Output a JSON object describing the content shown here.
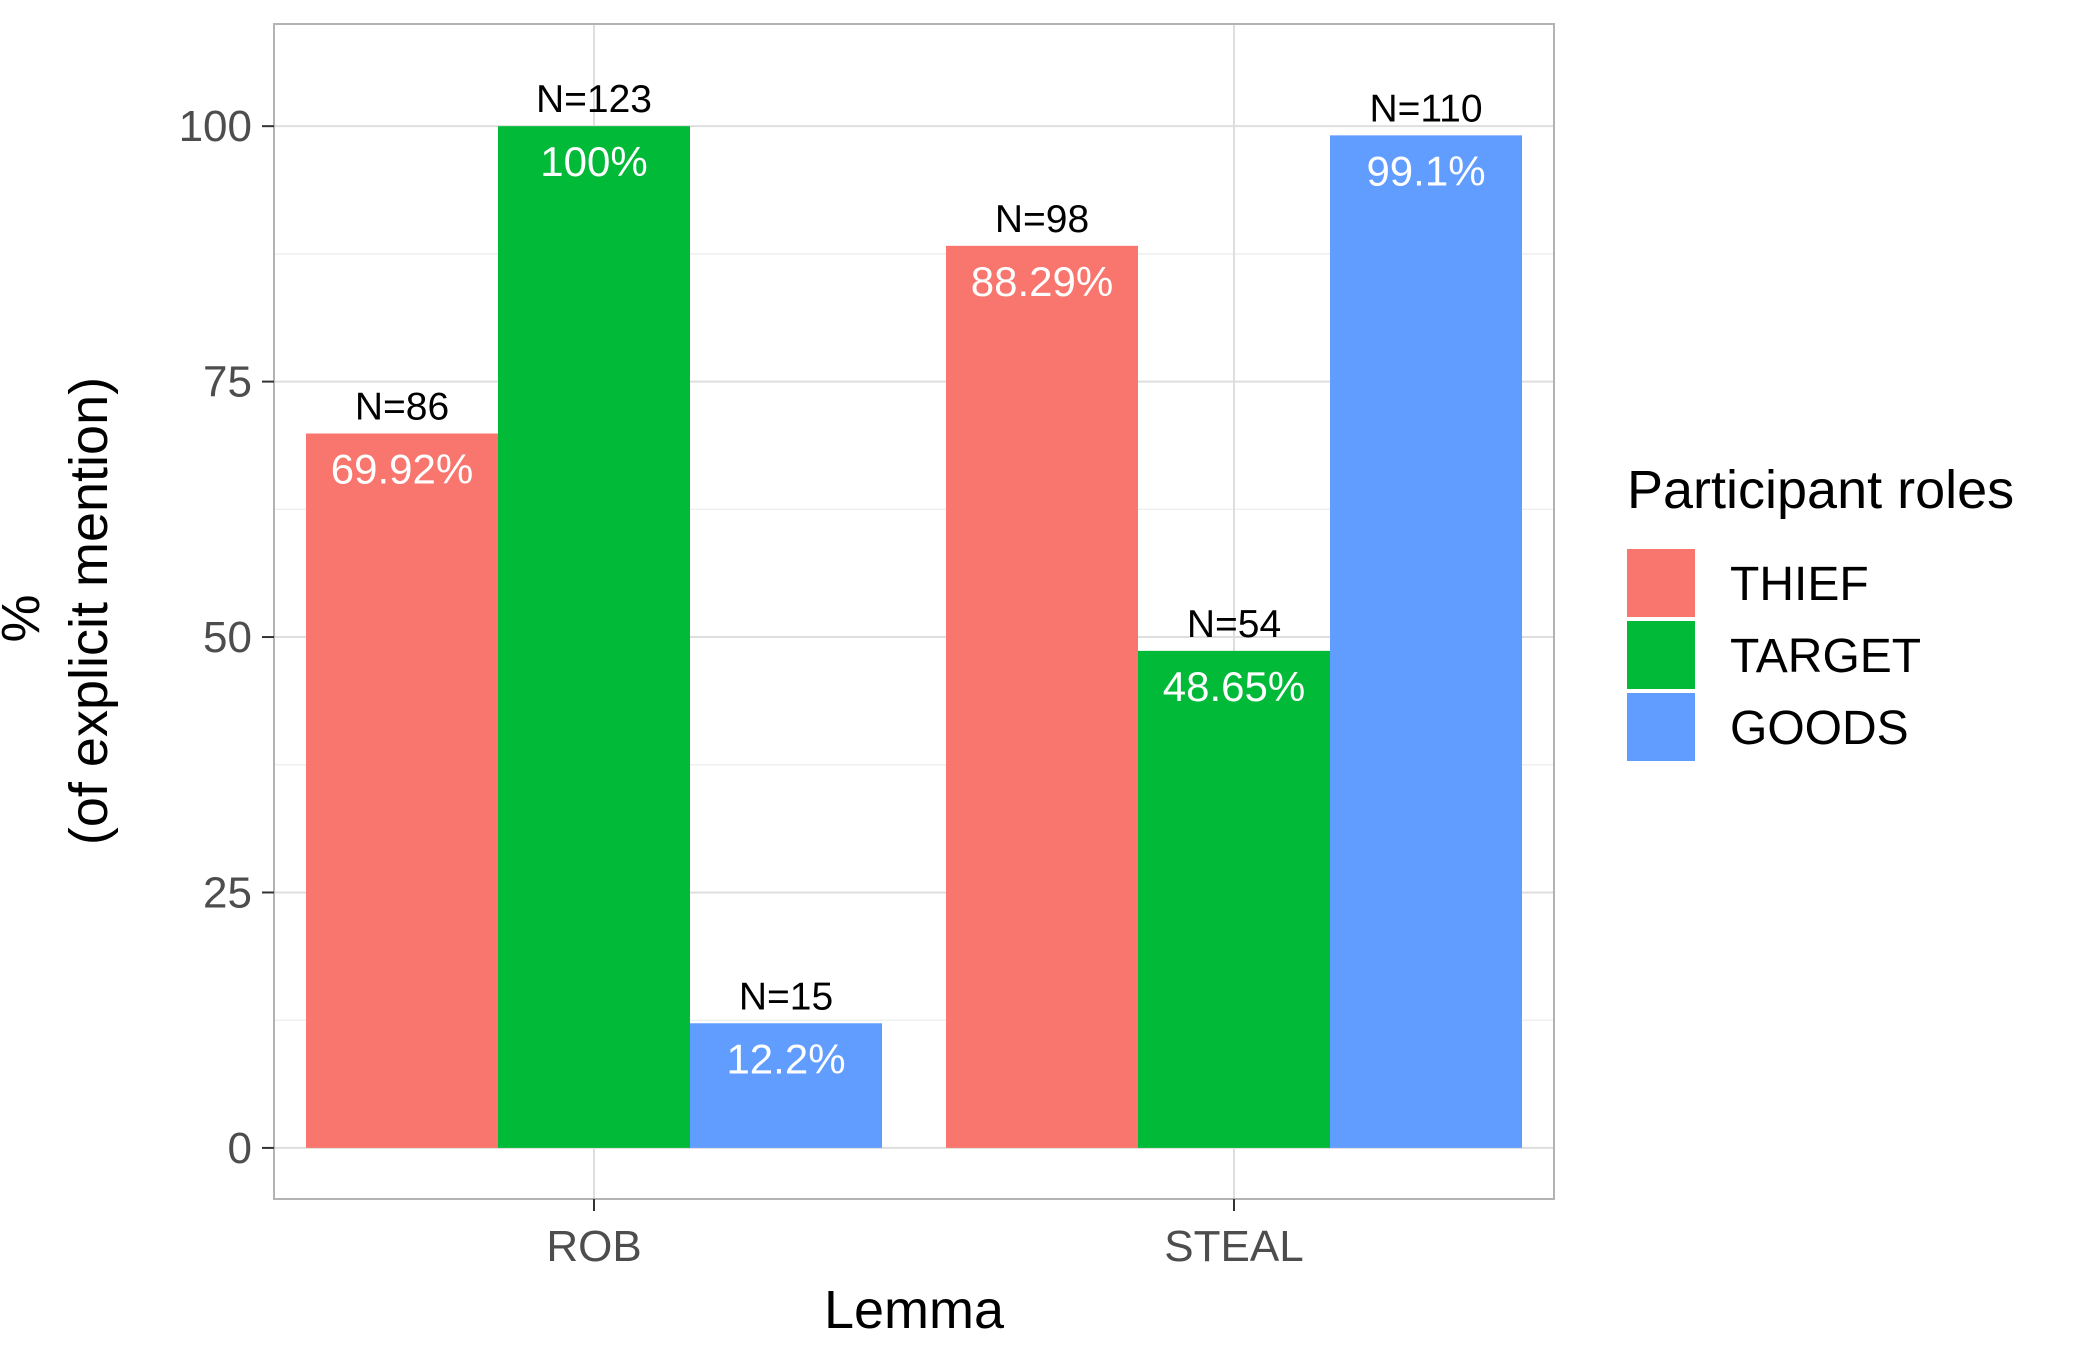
{
  "chart_data": {
    "type": "bar",
    "xlabel": "Lemma",
    "ylabel_lines": [
      "%",
      "(of explicit mention)"
    ],
    "categories": [
      "ROB",
      "STEAL"
    ],
    "ylim": [
      -5,
      110
    ],
    "yticks": [
      0,
      25,
      50,
      75,
      100
    ],
    "grid": true,
    "legend": {
      "title": "Participant roles",
      "position": "right"
    },
    "series": [
      {
        "name": "THIEF",
        "color": "#F8766D",
        "values": [
          69.92,
          88.29
        ],
        "value_labels": [
          "69.92%",
          "88.29%"
        ],
        "n_labels": [
          "N=86",
          "N=98"
        ]
      },
      {
        "name": "TARGET",
        "color": "#00BA38",
        "values": [
          100,
          48.65
        ],
        "value_labels": [
          "100%",
          "48.65%"
        ],
        "n_labels": [
          "N=123",
          "N=54"
        ]
      },
      {
        "name": "GOODS",
        "color": "#619CFF",
        "values": [
          12.2,
          99.1
        ],
        "value_labels": [
          "12.2%",
          "99.1%"
        ],
        "n_labels": [
          "N=15",
          "N=110"
        ]
      }
    ]
  }
}
